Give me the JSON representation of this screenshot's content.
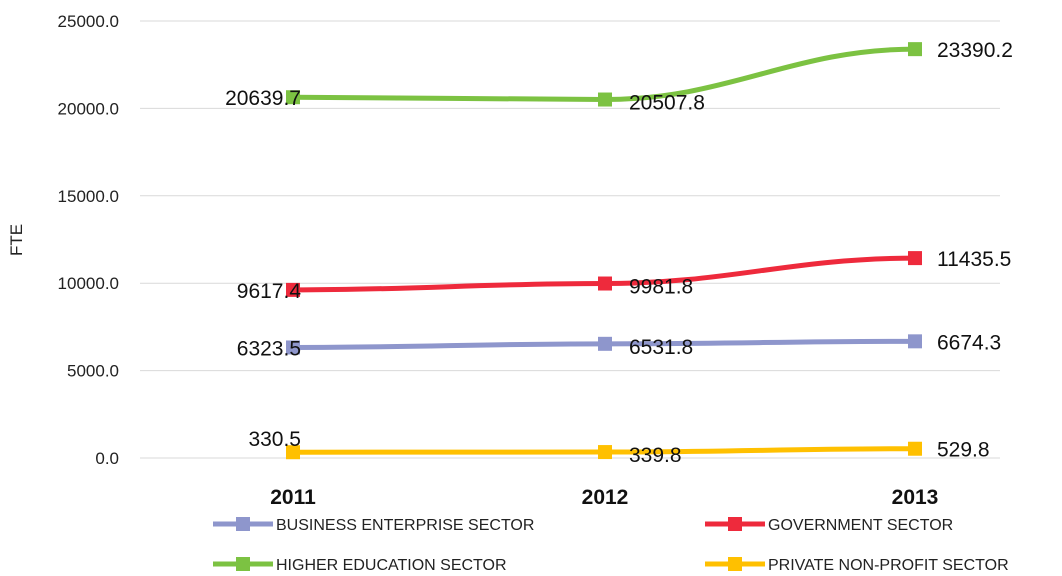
{
  "chart_data": {
    "type": "line",
    "title": "",
    "xlabel": "",
    "ylabel": "FTE",
    "x": [
      "2011",
      "2012",
      "2013"
    ],
    "ylim": [
      0,
      25000
    ],
    "yticks": [
      "0.0",
      "5000.0",
      "10000.0",
      "15000.0",
      "20000.0",
      "25000.0"
    ],
    "grid": true,
    "legend_position": "bottom",
    "series": [
      {
        "name": "BUSINESS ENTERPRISE SECTOR",
        "color": "#8e96cc",
        "values": [
          6323.5,
          6531.8,
          6674.3
        ],
        "labels": [
          "6323.5",
          "6531.8",
          "6674.3"
        ]
      },
      {
        "name": "GOVERNMENT SECTOR",
        "color": "#ee2a3c",
        "values": [
          9617.4,
          9981.8,
          11435.5
        ],
        "labels": [
          "9617.4",
          "9981.8",
          "11435.5"
        ]
      },
      {
        "name": "HIGHER EDUCATION SECTOR",
        "color": "#7cc242",
        "values": [
          20639.7,
          20507.8,
          23390.2
        ],
        "labels": [
          "20639.7",
          "20507.8",
          "23390.2"
        ]
      },
      {
        "name": "PRIVATE NON-PROFIT SECTOR",
        "color": "#ffc000",
        "values": [
          330.5,
          339.8,
          529.8
        ],
        "labels": [
          "330.5",
          "339.8",
          "529.8"
        ]
      }
    ]
  }
}
